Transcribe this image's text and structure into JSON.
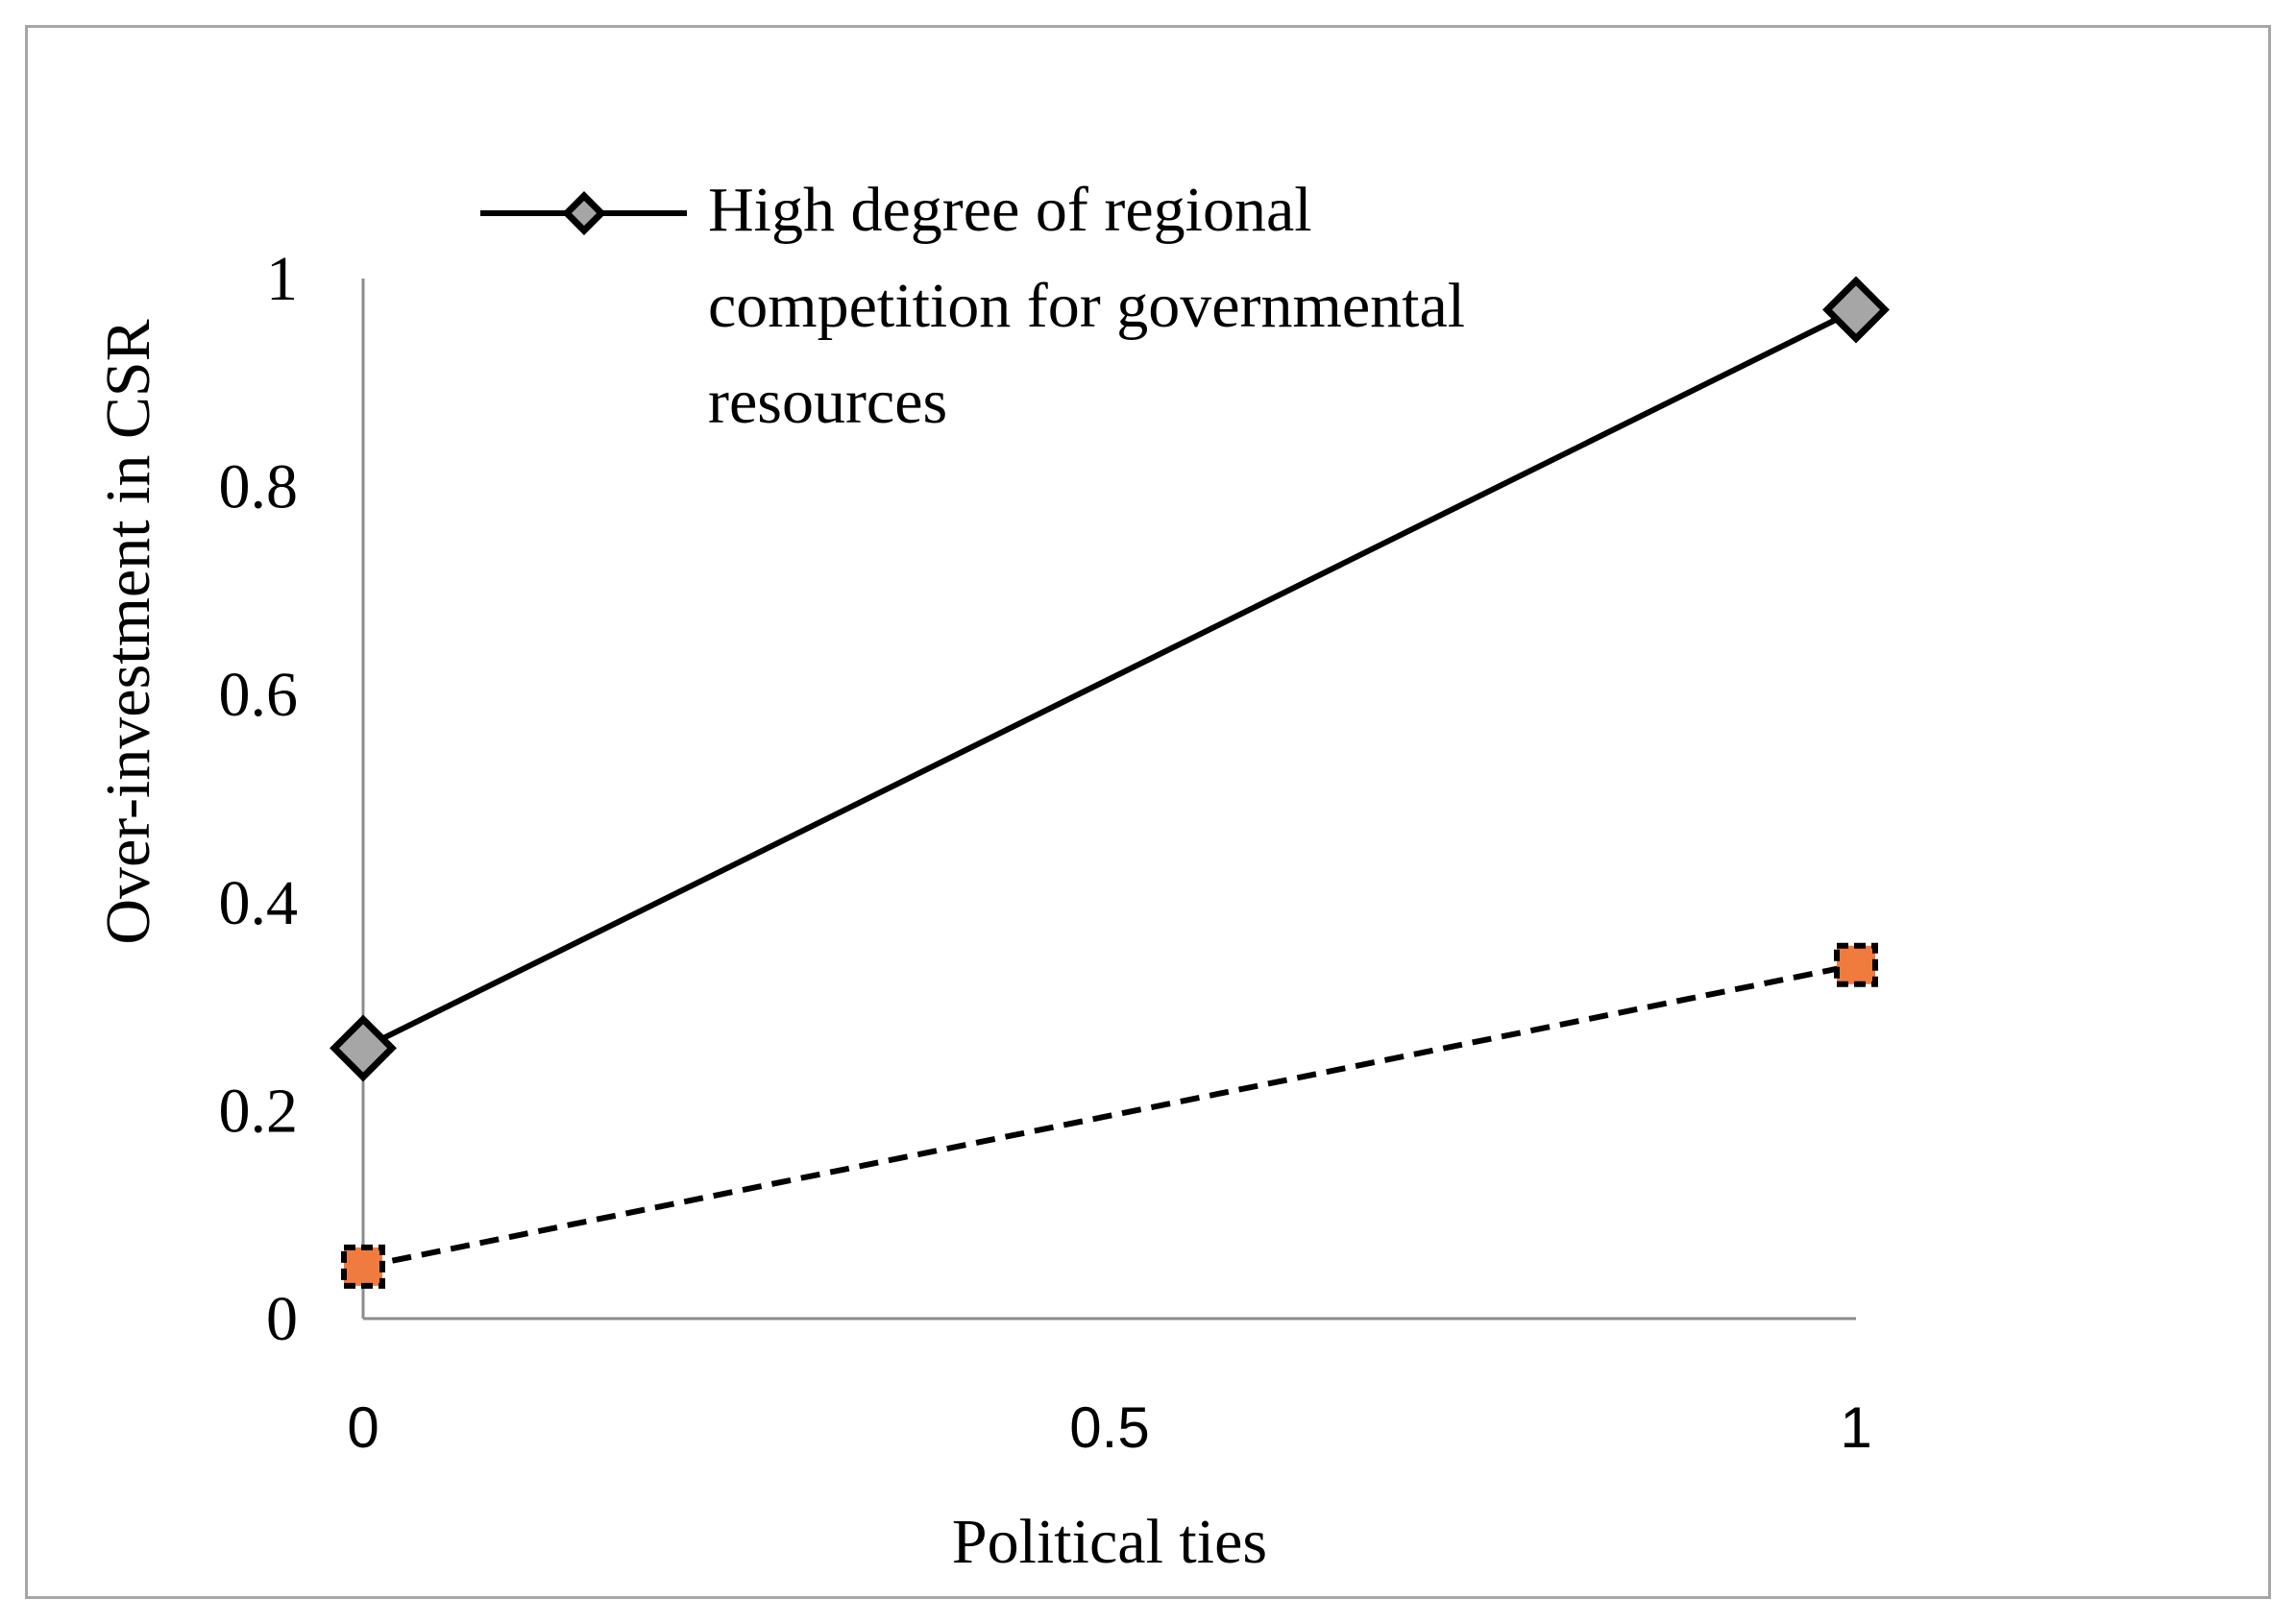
{
  "chart_data": {
    "type": "line",
    "xlabel": "Political ties",
    "ylabel": "Over-investment in CSR",
    "x": [
      0,
      1
    ],
    "xticks": [
      "0",
      "0.5",
      "1"
    ],
    "xlim": [
      0,
      1
    ],
    "yticks": [
      "0",
      "0.2",
      "0.4",
      "0.6",
      "0.8",
      "1"
    ],
    "ylim": [
      0,
      1
    ],
    "grid": false,
    "legend_position": "top",
    "series": [
      {
        "name": "High degree of regional competition for governmental resources",
        "name_lines": [
          "High degree of regional",
          "competition for governmental",
          "resources"
        ],
        "values": [
          0.26,
          0.97
        ],
        "line_style": "solid",
        "line_color": "#000000",
        "marker": "diamond",
        "marker_color": "#a6a6a6"
      },
      {
        "values": [
          0.05,
          0.34
        ],
        "line_style": "dashed",
        "line_color": "#000000",
        "marker": "square",
        "marker_color": "#f07b3f"
      }
    ]
  }
}
